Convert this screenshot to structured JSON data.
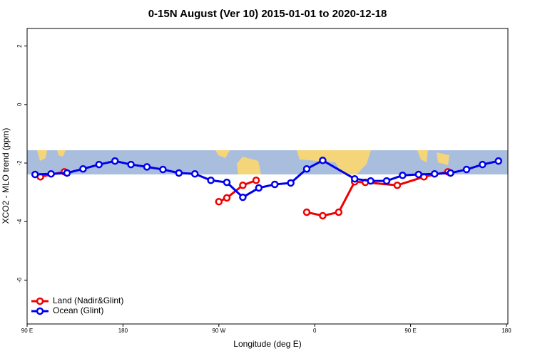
{
  "chart_data": {
    "type": "line",
    "title": "0-15N August (Ver 10)   2015-01-01 to 2020-12-18",
    "x_label": "Longitude (deg E)",
    "y_label": "XCO2 - MLO trend (ppm)",
    "xlim": [
      90,
      540
    ],
    "xticks": [
      {
        "value": 90,
        "label": "90 E"
      },
      {
        "value": 180,
        "label": "180"
      },
      {
        "value": 270,
        "label": "90 W"
      },
      {
        "value": 360,
        "label": "0"
      },
      {
        "value": 450,
        "label": "90 E"
      },
      {
        "value": 540,
        "label": "180"
      }
    ],
    "ylim": [
      -7.5,
      2.6
    ],
    "yticks": [
      2,
      0,
      -2,
      -4,
      -6
    ],
    "legend": "bottom-left",
    "series": [
      {
        "name": "Land (Nadir&Glint)",
        "color": "#ee0000",
        "x": [
          102.5,
          125,
          187.5,
          270,
          277.5,
          292.5,
          305,
          330,
          352.5,
          367.5,
          382.5,
          397.5,
          407.5,
          437.5,
          462.5,
          485
        ],
        "values": [
          -2.47,
          -2.3,
          null,
          -3.32,
          -3.19,
          -2.76,
          -2.59,
          null,
          -3.68,
          -3.8,
          -3.68,
          -2.64,
          -2.66,
          -2.76,
          -2.47,
          -2.3
        ]
      },
      {
        "name": "Ocean (Glint)",
        "color": "#0000ee",
        "x": [
          97.5,
          112.5,
          127.5,
          142.5,
          157.5,
          172.5,
          187.5,
          202.5,
          217.5,
          232.5,
          247.5,
          262.5,
          277.5,
          292.5,
          307.5,
          322.5,
          337.5,
          352.5,
          367.5,
          397.5,
          412.5,
          427.5,
          442.5,
          457.5,
          472.5,
          487.5,
          502.5,
          517.5,
          532.5
        ],
        "values": [
          -2.39,
          -2.37,
          -2.34,
          -2.2,
          -2.05,
          -1.93,
          -2.05,
          -2.13,
          -2.22,
          -2.34,
          -2.37,
          -2.59,
          -2.66,
          -3.17,
          -2.85,
          -2.73,
          -2.68,
          -2.2,
          -1.91,
          -2.54,
          -2.61,
          -2.61,
          -2.42,
          -2.39,
          -2.37,
          -2.34,
          -2.22,
          -2.05,
          -1.93
        ]
      }
    ]
  }
}
